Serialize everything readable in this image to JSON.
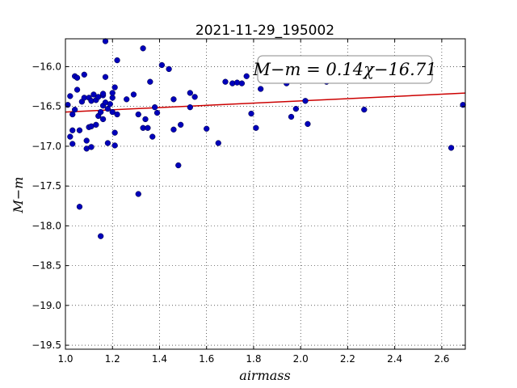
{
  "chart_data": {
    "type": "scatter",
    "title": "2021-11-29_195002",
    "xlabel": "airmass",
    "ylabel": "M−m",
    "xlim": [
      1.0,
      2.7
    ],
    "ylim": [
      -19.55,
      -15.65
    ],
    "y_inverted": false,
    "grid": true,
    "x_ticks": [
      "1.0",
      "1.2",
      "1.4",
      "1.6",
      "1.8",
      "2.0",
      "2.2",
      "2.4",
      "2.6"
    ],
    "x_tick_values": [
      1.0,
      1.2,
      1.4,
      1.6,
      1.8,
      2.0,
      2.2,
      2.4,
      2.6
    ],
    "y_ticks": [
      "−16.0",
      "−16.5",
      "−17.0",
      "−17.5",
      "−18.0",
      "−18.5",
      "−19.0",
      "−19.5"
    ],
    "y_tick_values": [
      -16.0,
      -16.5,
      -17.0,
      -17.5,
      -18.0,
      -18.5,
      -19.0,
      -19.5
    ],
    "fit_label": "M−m = 0.14χ−16.71",
    "fit_line": {
      "slope": 0.14,
      "intercept": -16.71,
      "color": "#cc0000"
    },
    "point_color": "#0000bb",
    "points": [
      [
        1.01,
        -16.48
      ],
      [
        1.02,
        -16.37
      ],
      [
        1.02,
        -16.88
      ],
      [
        1.03,
        -16.6
      ],
      [
        1.03,
        -16.97
      ],
      [
        1.03,
        -16.8
      ],
      [
        1.04,
        -16.12
      ],
      [
        1.04,
        -16.54
      ],
      [
        1.05,
        -16.14
      ],
      [
        1.05,
        -16.29
      ],
      [
        1.06,
        -17.76
      ],
      [
        1.06,
        -16.8
      ],
      [
        1.07,
        -16.44
      ],
      [
        1.08,
        -16.1
      ],
      [
        1.08,
        -16.39
      ],
      [
        1.09,
        -17.03
      ],
      [
        1.09,
        -16.93
      ],
      [
        1.1,
        -16.39
      ],
      [
        1.1,
        -16.76
      ],
      [
        1.11,
        -16.75
      ],
      [
        1.11,
        -17.01
      ],
      [
        1.11,
        -16.43
      ],
      [
        1.12,
        -16.35
      ],
      [
        1.13,
        -16.73
      ],
      [
        1.13,
        -16.42
      ],
      [
        1.14,
        -16.38
      ],
      [
        1.14,
        -16.62
      ],
      [
        1.15,
        -18.13
      ],
      [
        1.15,
        -16.57
      ],
      [
        1.16,
        -16.36
      ],
      [
        1.16,
        -16.34
      ],
      [
        1.16,
        -16.66
      ],
      [
        1.16,
        -16.49
      ],
      [
        1.17,
        -15.68
      ],
      [
        1.17,
        -16.45
      ],
      [
        1.17,
        -16.13
      ],
      [
        1.18,
        -16.96
      ],
      [
        1.18,
        -16.53
      ],
      [
        1.19,
        -16.47
      ],
      [
        1.2,
        -16.57
      ],
      [
        1.2,
        -16.39
      ],
      [
        1.2,
        -16.33
      ],
      [
        1.21,
        -16.26
      ],
      [
        1.21,
        -16.83
      ],
      [
        1.21,
        -16.99
      ],
      [
        1.22,
        -16.6
      ],
      [
        1.22,
        -15.92
      ],
      [
        1.26,
        -16.41
      ],
      [
        1.29,
        -16.35
      ],
      [
        1.31,
        -16.6
      ],
      [
        1.31,
        -17.6
      ],
      [
        1.33,
        -15.77
      ],
      [
        1.33,
        -16.77
      ],
      [
        1.34,
        -16.66
      ],
      [
        1.35,
        -16.77
      ],
      [
        1.36,
        -16.19
      ],
      [
        1.37,
        -16.88
      ],
      [
        1.38,
        -16.51
      ],
      [
        1.39,
        -16.58
      ],
      [
        1.41,
        -15.98
      ],
      [
        1.44,
        -16.03
      ],
      [
        1.46,
        -16.41
      ],
      [
        1.46,
        -16.79
      ],
      [
        1.48,
        -17.24
      ],
      [
        1.49,
        -16.73
      ],
      [
        1.53,
        -16.33
      ],
      [
        1.53,
        -16.51
      ],
      [
        1.55,
        -16.38
      ],
      [
        1.6,
        -16.78
      ],
      [
        1.65,
        -16.96
      ],
      [
        1.68,
        -16.19
      ],
      [
        1.71,
        -16.21
      ],
      [
        1.73,
        -16.2
      ],
      [
        1.75,
        -16.21
      ],
      [
        1.77,
        -16.12
      ],
      [
        1.79,
        -16.59
      ],
      [
        1.81,
        -16.77
      ],
      [
        1.83,
        -16.28
      ],
      [
        1.94,
        -16.21
      ],
      [
        1.96,
        -16.63
      ],
      [
        1.98,
        -16.53
      ],
      [
        2.02,
        -16.43
      ],
      [
        2.03,
        -16.72
      ],
      [
        2.11,
        -16.19
      ],
      [
        2.27,
        -16.54
      ],
      [
        2.64,
        -17.02
      ],
      [
        2.69,
        -16.48
      ]
    ]
  }
}
